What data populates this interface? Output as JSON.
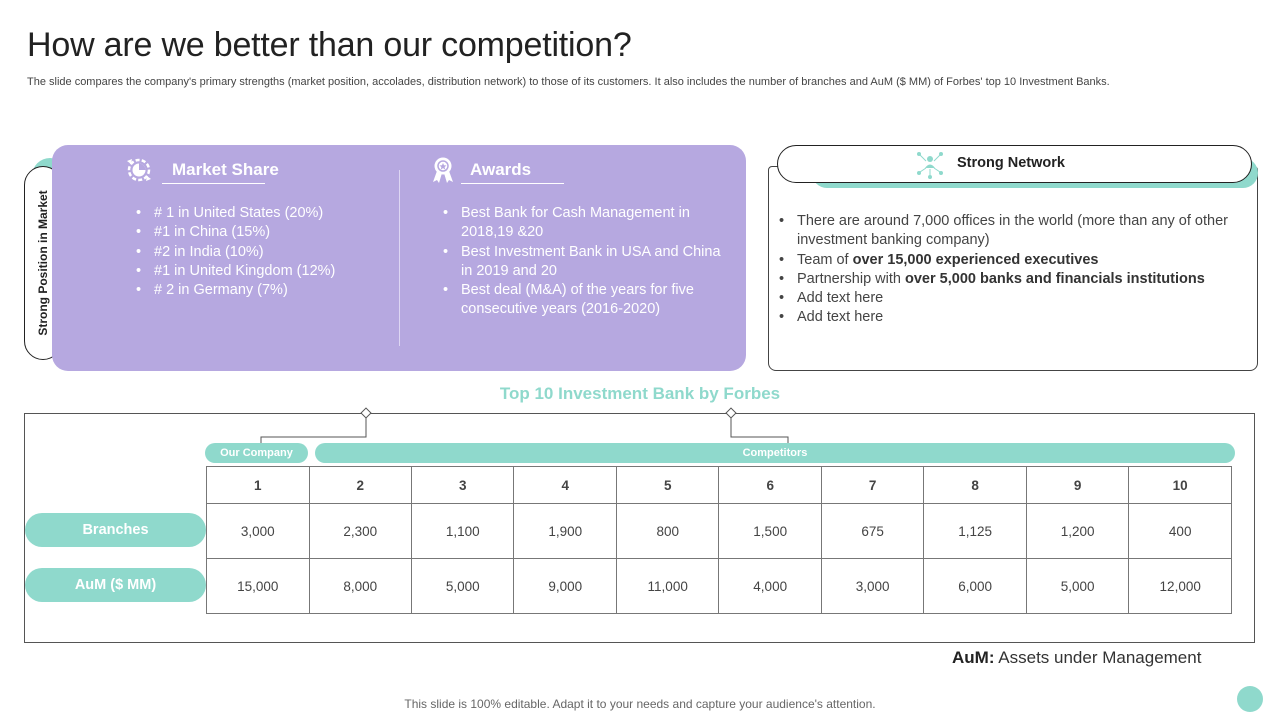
{
  "slide": {
    "title": "How are we better than our competition?",
    "subtitle": "The slide compares the company's primary strengths (market position, accolades, distribution network) to those of its customers. It also includes the number of branches and AuM ($ MM)  of Forbes' top 10 Investment Banks."
  },
  "position_panel": {
    "side_label": "Strong Position in Market",
    "market_share": {
      "heading": "Market Share",
      "icon": "pie-chart-gear-icon",
      "items": [
        "# 1 in United States (20%)",
        "#1 in China (15%)",
        "#2 in India (10%)",
        "#1 in United Kingdom (12%)",
        "# 2 in Germany (7%)"
      ]
    },
    "awards": {
      "heading": "Awards",
      "icon": "award-ribbon-icon",
      "items": [
        "Best Bank for Cash Management in 2018,19 &20",
        "Best Investment Bank in USA and China in 2019 and 20",
        "Best deal (M&A) of the years for five consecutive years (2016-2020)"
      ]
    }
  },
  "network": {
    "title": "Strong Network",
    "icon": "network-people-icon",
    "items": [
      {
        "pre": "There are around 7,000 offices in the world (more than any of other investment banking company)",
        "bold": ""
      },
      {
        "pre": "Team of ",
        "bold": "over 15,000 experienced executives"
      },
      {
        "pre": "Partnership with ",
        "bold": "over 5,000 banks and financials institutions"
      },
      {
        "pre": "Add text here",
        "bold": ""
      },
      {
        "pre": "Add text here",
        "bold": ""
      }
    ]
  },
  "table": {
    "title": "Top 10 Investment Bank by Forbes",
    "group_our": "Our Company",
    "group_competitors": "Competitors",
    "columns": [
      "1",
      "2",
      "3",
      "4",
      "5",
      "6",
      "7",
      "8",
      "9",
      "10"
    ],
    "rows": [
      {
        "label": "Branches",
        "values": [
          "3,000",
          "2,300",
          "1,100",
          "1,900",
          "800",
          "1,500",
          "675",
          "1,125",
          "1,200",
          "400"
        ]
      },
      {
        "label": "AuM ($ MM)",
        "values": [
          "15,000",
          "8,000",
          "5,000",
          "9,000",
          "11,000",
          "4,000",
          "3,000",
          "6,000",
          "5,000",
          "12,000"
        ]
      }
    ]
  },
  "aum_note": {
    "term": "AuM:",
    "definition": " Assets under Management"
  },
  "footer": "This slide is 100% editable.  Adapt it to your needs and capture your audience's attention.",
  "colors": {
    "accent_teal": "#8fd9cc",
    "panel_purple": "#b6a8e0"
  }
}
